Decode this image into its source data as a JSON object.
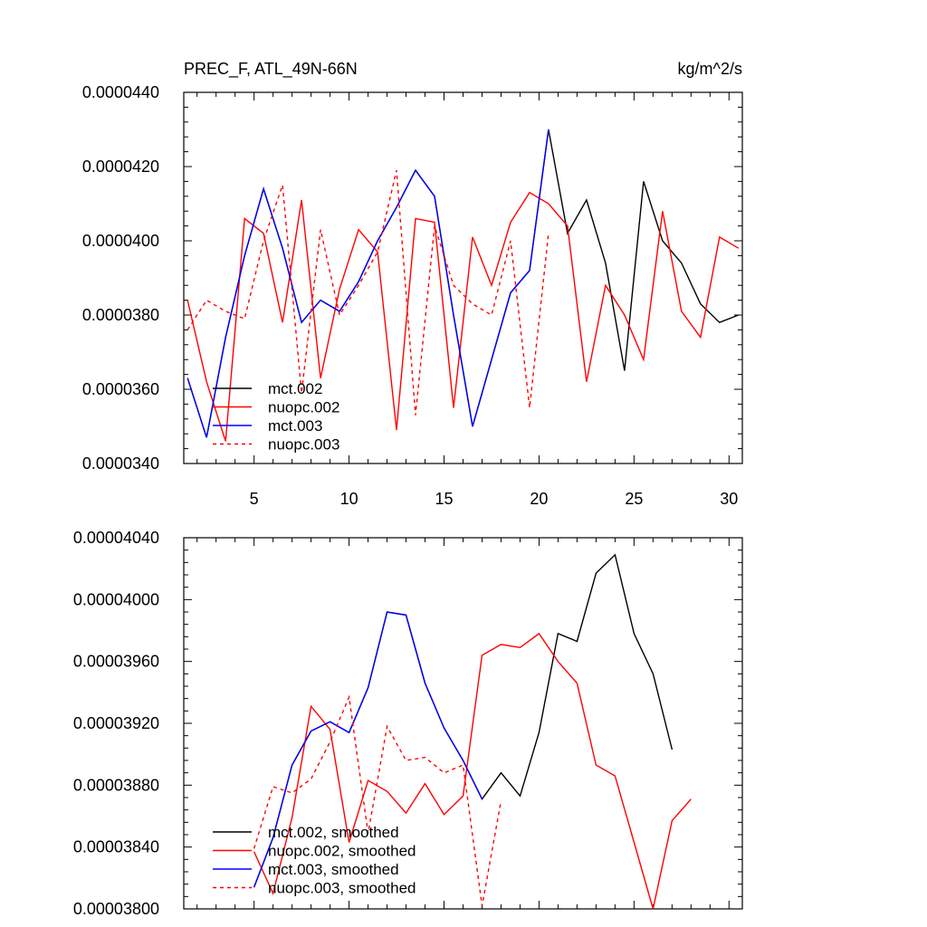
{
  "chart_data": [
    {
      "type": "line",
      "title": "PREC_F, ATL_49N-66N",
      "units": "kg/m^2/s",
      "xlim": [
        1.3,
        30.7
      ],
      "ylim": [
        3.4e-05,
        4.4e-05
      ],
      "yticks": [
        "0.0000340",
        "0.0000360",
        "0.0000380",
        "0.0000400",
        "0.0000420",
        "0.0000440"
      ],
      "yticks_values": [
        3.4e-05,
        3.6e-05,
        3.8e-05,
        4e-05,
        4.2e-05,
        4.4e-05
      ],
      "xticks": [
        5,
        10,
        15,
        20,
        25,
        30
      ],
      "legend_position": "bottom-left",
      "series": [
        {
          "name": "mct.002",
          "color": "#000000",
          "dashed": false,
          "x": [
            1.5,
            2.5,
            3.5,
            4.5,
            5.5,
            6.5,
            7.5,
            8.5,
            9.5,
            10.5,
            11.5,
            12.5,
            13.5,
            14.5,
            15.5,
            16.5,
            17.5,
            18.5,
            19.5,
            20.5,
            21.5,
            22.5,
            23.5,
            24.5,
            25.5,
            26.5,
            27.5,
            28.5,
            29.5,
            30.5
          ],
          "y": [
            3.63e-05,
            3.47e-05,
            3.74e-05,
            3.96e-05,
            4.14e-05,
            3.98e-05,
            3.78e-05,
            3.84e-05,
            3.81e-05,
            3.89e-05,
            4e-05,
            4.09e-05,
            4.19e-05,
            4.12e-05,
            3.8e-05,
            3.5e-05,
            3.68e-05,
            3.86e-05,
            3.92e-05,
            4.3e-05,
            4.02e-05,
            4.11e-05,
            3.94e-05,
            3.65e-05,
            4.16e-05,
            4e-05,
            3.94e-05,
            3.83e-05,
            3.78e-05,
            3.8e-05
          ]
        },
        {
          "name": "nuopc.002",
          "color": "#ff0000",
          "dashed": false,
          "x": [
            1.5,
            2.5,
            3.5,
            4.5,
            5.5,
            6.5,
            7.5,
            8.5,
            9.5,
            10.5,
            11.5,
            12.5,
            13.5,
            14.5,
            15.5,
            16.5,
            17.5,
            18.5,
            19.5,
            20.5,
            21.5,
            22.5,
            23.5,
            24.5,
            25.5,
            26.5,
            27.5,
            28.5,
            29.5,
            30.5
          ],
          "y": [
            3.84e-05,
            3.62e-05,
            3.46e-05,
            4.06e-05,
            4.02e-05,
            3.78e-05,
            4.11e-05,
            3.63e-05,
            3.87e-05,
            4.03e-05,
            3.97e-05,
            3.49e-05,
            4.06e-05,
            4.05e-05,
            3.55e-05,
            4.01e-05,
            3.88e-05,
            4.05e-05,
            4.13e-05,
            4.1e-05,
            4.04e-05,
            3.62e-05,
            3.88e-05,
            3.8e-05,
            3.68e-05,
            4.08e-05,
            3.81e-05,
            3.74e-05,
            4.01e-05,
            3.98e-05
          ]
        },
        {
          "name": "mct.003",
          "color": "#0000ff",
          "dashed": false,
          "x": [
            1.5,
            2.5,
            3.5,
            4.5,
            5.5,
            6.5,
            7.5,
            8.5,
            9.5,
            10.5,
            11.5,
            12.5,
            13.5,
            14.5,
            15.5,
            16.5,
            17.5,
            18.5,
            19.5,
            20.5
          ],
          "y": [
            3.63e-05,
            3.47e-05,
            3.74e-05,
            3.96e-05,
            4.14e-05,
            3.98e-05,
            3.78e-05,
            3.84e-05,
            3.81e-05,
            3.89e-05,
            4e-05,
            4.09e-05,
            4.19e-05,
            4.12e-05,
            3.8e-05,
            3.5e-05,
            3.68e-05,
            3.86e-05,
            3.92e-05,
            4.3e-05
          ]
        },
        {
          "name": "nuopc.003",
          "color": "#ff0000",
          "dashed": true,
          "x": [
            1.5,
            2.5,
            3.5,
            4.5,
            5.5,
            6.5,
            7.5,
            8.5,
            9.5,
            10.5,
            11.5,
            12.5,
            13.5,
            14.5,
            15.5,
            16.5,
            17.5,
            18.5,
            19.5,
            20.5
          ],
          "y": [
            3.76e-05,
            3.84e-05,
            3.81e-05,
            3.79e-05,
            4e-05,
            4.15e-05,
            3.59e-05,
            4.03e-05,
            3.8e-05,
            3.88e-05,
            3.97e-05,
            4.19e-05,
            3.53e-05,
            4.04e-05,
            3.88e-05,
            3.83e-05,
            3.8e-05,
            4e-05,
            3.55e-05,
            4.02e-05
          ]
        }
      ]
    },
    {
      "type": "line",
      "title": "",
      "xlim": [
        1.3,
        30.7
      ],
      "ylim": [
        3.8e-05,
        4.04e-05
      ],
      "yticks": [
        "0.00003800",
        "0.00003840",
        "0.00003880",
        "0.00003920",
        "0.00003960",
        "0.00004000",
        "0.00004040"
      ],
      "yticks_values": [
        3.8e-05,
        3.84e-05,
        3.88e-05,
        3.92e-05,
        3.96e-05,
        4e-05,
        4.04e-05
      ],
      "xticks": [
        5,
        10,
        15,
        20,
        25,
        30
      ],
      "legend_position": "bottom-left",
      "series": [
        {
          "name": "mct.002, smoothed",
          "color": "#000000",
          "dashed": false,
          "x": [
            5,
            6,
            7,
            8,
            9,
            10,
            11,
            12,
            13,
            14,
            15,
            16,
            17,
            18,
            19,
            20,
            21,
            22,
            23,
            24,
            25,
            26,
            27
          ],
          "y": [
            3.814e-05,
            3.846e-05,
            3.893e-05,
            3.915e-05,
            3.921e-05,
            3.914e-05,
            3.943e-05,
            3.992e-05,
            3.99e-05,
            3.946e-05,
            3.917e-05,
            3.896e-05,
            3.871e-05,
            3.888e-05,
            3.873e-05,
            3.914e-05,
            3.978e-05,
            3.973e-05,
            4.017e-05,
            4.029e-05,
            3.978e-05,
            3.952e-05,
            3.903e-05
          ]
        },
        {
          "name": "nuopc.002, smoothed",
          "color": "#ff0000",
          "dashed": false,
          "x": [
            5,
            6,
            7,
            8,
            9,
            10,
            11,
            12,
            13,
            14,
            15,
            16,
            17,
            18,
            19,
            20,
            21,
            22,
            23,
            24,
            25,
            26,
            27,
            28
          ],
          "y": [
            3.837e-05,
            3.81e-05,
            3.859e-05,
            3.931e-05,
            3.916e-05,
            3.843e-05,
            3.883e-05,
            3.876e-05,
            3.862e-05,
            3.881e-05,
            3.861e-05,
            3.873e-05,
            3.964e-05,
            3.971e-05,
            3.969e-05,
            3.978e-05,
            3.96e-05,
            3.946e-05,
            3.893e-05,
            3.886e-05,
            3.843e-05,
            3.8e-05,
            3.857e-05,
            3.871e-05
          ]
        },
        {
          "name": "mct.003, smoothed",
          "color": "#0000ff",
          "dashed": false,
          "x": [
            5,
            6,
            7,
            8,
            9,
            10,
            11,
            12,
            13,
            14,
            15,
            16,
            17
          ],
          "y": [
            3.814e-05,
            3.846e-05,
            3.893e-05,
            3.915e-05,
            3.921e-05,
            3.914e-05,
            3.943e-05,
            3.992e-05,
            3.99e-05,
            3.946e-05,
            3.917e-05,
            3.896e-05,
            3.871e-05
          ]
        },
        {
          "name": "nuopc.003, smoothed",
          "color": "#ff0000",
          "dashed": true,
          "x": [
            5,
            6,
            7,
            8,
            9,
            10,
            11,
            12,
            13,
            14,
            15,
            16,
            17,
            18
          ],
          "y": [
            3.839e-05,
            3.879e-05,
            3.875e-05,
            3.884e-05,
            3.908e-05,
            3.937e-05,
            3.849e-05,
            3.918e-05,
            3.896e-05,
            3.898e-05,
            3.888e-05,
            3.893e-05,
            3.802e-05,
            3.87e-05
          ]
        }
      ]
    }
  ]
}
